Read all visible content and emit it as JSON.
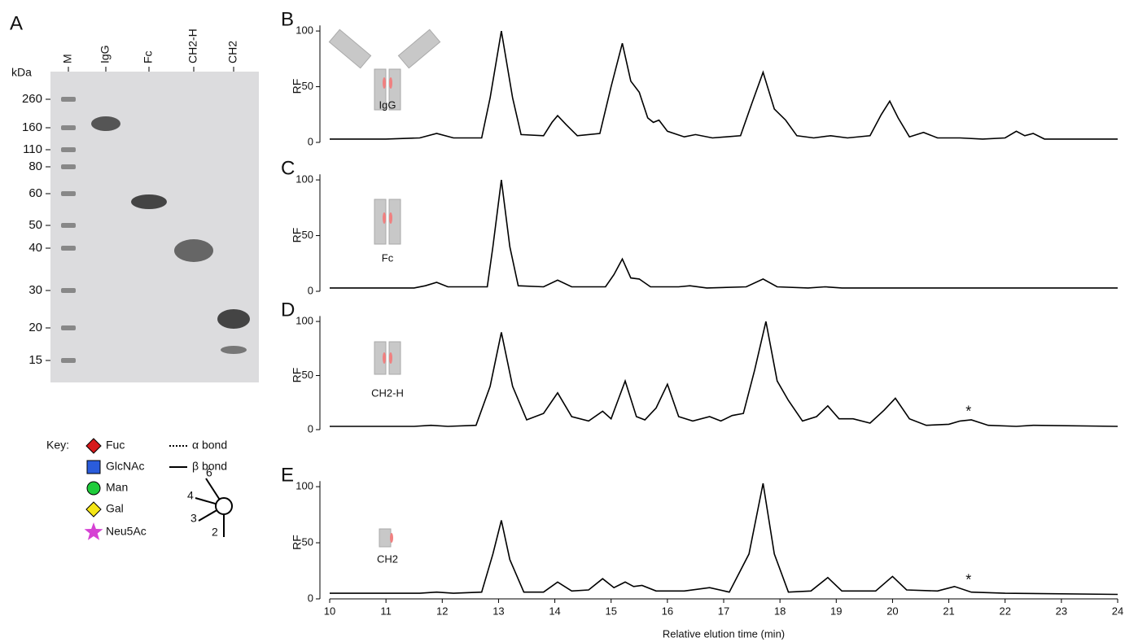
{
  "gel": {
    "panel": "A",
    "unit": "kDa",
    "lanes": [
      "M",
      "IgG",
      "Fc",
      "CH2-H",
      "CH2"
    ],
    "markers": [
      260,
      160,
      110,
      80,
      60,
      50,
      40,
      30,
      20,
      15
    ]
  },
  "key": {
    "title": "Key:",
    "items": [
      "Fuc",
      "GlcNAc",
      "Man",
      "Gal",
      "Neu5Ac"
    ],
    "colors": [
      "#d7191c",
      "#2a5cdb",
      "#1fcc3b",
      "#f5e616",
      "#d541d3"
    ],
    "bonds": [
      "α bond",
      "β bond"
    ],
    "linkages": [
      "6",
      "4",
      "3",
      "2"
    ]
  },
  "chart_data": [
    {
      "type": "line",
      "panel": "B",
      "label": "IgG",
      "ylabel": "RF",
      "xlim": [
        10,
        24
      ],
      "ylim": [
        0,
        105
      ],
      "yticks": [
        0,
        50,
        100
      ],
      "x": [
        10,
        11,
        11.6,
        11.9,
        12.2,
        12.7,
        12.85,
        13.05,
        13.25,
        13.4,
        13.8,
        13.95,
        14.05,
        14.2,
        14.4,
        14.8,
        15.0,
        15.2,
        15.35,
        15.5,
        15.65,
        15.75,
        15.85,
        16.0,
        16.3,
        16.5,
        16.8,
        17.3,
        17.5,
        17.7,
        17.9,
        18.1,
        18.3,
        18.6,
        18.9,
        19.2,
        19.6,
        19.8,
        19.95,
        20.1,
        20.3,
        20.55,
        20.8,
        21.2,
        21.6,
        22.0,
        22.2,
        22.35,
        22.5,
        22.7,
        24
      ],
      "series": [
        {
          "color": "#000000",
          "values": [
            3,
            3,
            4,
            8,
            4,
            4,
            40,
            100,
            40,
            7,
            6,
            18,
            24,
            16,
            6,
            8,
            50,
            89,
            55,
            45,
            22,
            18,
            20,
            10,
            5,
            7,
            4,
            6,
            35,
            63,
            30,
            20,
            6,
            4,
            6,
            4,
            6,
            25,
            37,
            22,
            5,
            9,
            4,
            4,
            3,
            4,
            10,
            6,
            8,
            3,
            3
          ]
        }
      ]
    },
    {
      "type": "line",
      "panel": "C",
      "label": "Fc",
      "ylabel": "RF",
      "xlim": [
        10,
        24
      ],
      "ylim": [
        0,
        105
      ],
      "yticks": [
        0,
        50,
        100
      ],
      "x": [
        10,
        11.5,
        11.7,
        11.9,
        12.1,
        12.8,
        12.9,
        13.05,
        13.2,
        13.35,
        13.8,
        14.05,
        14.3,
        14.9,
        15.05,
        15.2,
        15.35,
        15.5,
        15.7,
        16.2,
        16.4,
        16.7,
        17.4,
        17.7,
        17.95,
        18.5,
        18.8,
        19.1,
        24
      ],
      "series": [
        {
          "color": "#000000",
          "values": [
            3,
            3,
            5,
            8,
            4,
            4,
            40,
            100,
            40,
            5,
            4,
            10,
            4,
            4,
            15,
            29,
            12,
            11,
            4,
            4,
            5,
            3,
            4,
            11,
            4,
            3,
            4,
            3,
            3
          ]
        }
      ]
    },
    {
      "type": "line",
      "panel": "D",
      "label": "CH2-H",
      "ylabel": "RF",
      "xlim": [
        10,
        24
      ],
      "ylim": [
        0,
        105
      ],
      "yticks": [
        0,
        50,
        100
      ],
      "x": [
        10,
        11.5,
        11.8,
        12.1,
        12.6,
        12.85,
        13.05,
        13.25,
        13.5,
        13.8,
        14.05,
        14.3,
        14.6,
        14.85,
        15.0,
        15.25,
        15.45,
        15.6,
        15.8,
        16.0,
        16.2,
        16.45,
        16.75,
        16.95,
        17.15,
        17.35,
        17.55,
        17.75,
        17.95,
        18.15,
        18.4,
        18.65,
        18.85,
        19.05,
        19.3,
        19.6,
        19.85,
        20.05,
        20.3,
        20.6,
        21.0,
        21.2,
        21.4,
        21.7,
        22.2,
        22.5,
        24
      ],
      "series": [
        {
          "color": "#000000",
          "values": [
            3,
            3,
            4,
            3,
            4,
            40,
            90,
            40,
            9,
            15,
            34,
            12,
            8,
            17,
            10,
            45,
            12,
            9,
            20,
            42,
            12,
            8,
            12,
            8,
            13,
            15,
            55,
            100,
            45,
            27,
            8,
            12,
            22,
            10,
            10,
            6,
            18,
            29,
            10,
            4,
            5,
            8,
            9,
            4,
            3,
            4,
            3
          ]
        }
      ],
      "annotations": [
        {
          "text": "*",
          "x": 21.35,
          "y": 16
        }
      ]
    },
    {
      "type": "line",
      "panel": "E",
      "label": "CH2",
      "ylabel": "RF",
      "xlabel": "Relative elution time (min)",
      "xlim": [
        10,
        24
      ],
      "ylim": [
        0,
        105
      ],
      "yticks": [
        0,
        50,
        100
      ],
      "xticks": [
        10,
        11,
        12,
        13,
        14,
        15,
        16,
        17,
        18,
        19,
        20,
        21,
        22,
        23,
        24
      ],
      "x": [
        10,
        11.6,
        11.9,
        12.2,
        12.7,
        12.9,
        13.05,
        13.2,
        13.45,
        13.8,
        14.05,
        14.3,
        14.6,
        14.85,
        15.05,
        15.25,
        15.4,
        15.55,
        15.8,
        16.3,
        16.75,
        17.1,
        17.45,
        17.7,
        17.9,
        18.15,
        18.55,
        18.85,
        19.1,
        19.7,
        20.0,
        20.25,
        20.8,
        21.1,
        21.4,
        22,
        24
      ],
      "series": [
        {
          "color": "#000000",
          "values": [
            5,
            5,
            6,
            5,
            6,
            40,
            70,
            35,
            6,
            6,
            15,
            7,
            8,
            18,
            10,
            15,
            11,
            12,
            7,
            7,
            10,
            6,
            40,
            103,
            40,
            6,
            7,
            19,
            7,
            7,
            20,
            8,
            7,
            11,
            6,
            5,
            4
          ]
        }
      ],
      "annotations": [
        {
          "text": "*",
          "x": 21.35,
          "y": 16
        }
      ]
    }
  ]
}
